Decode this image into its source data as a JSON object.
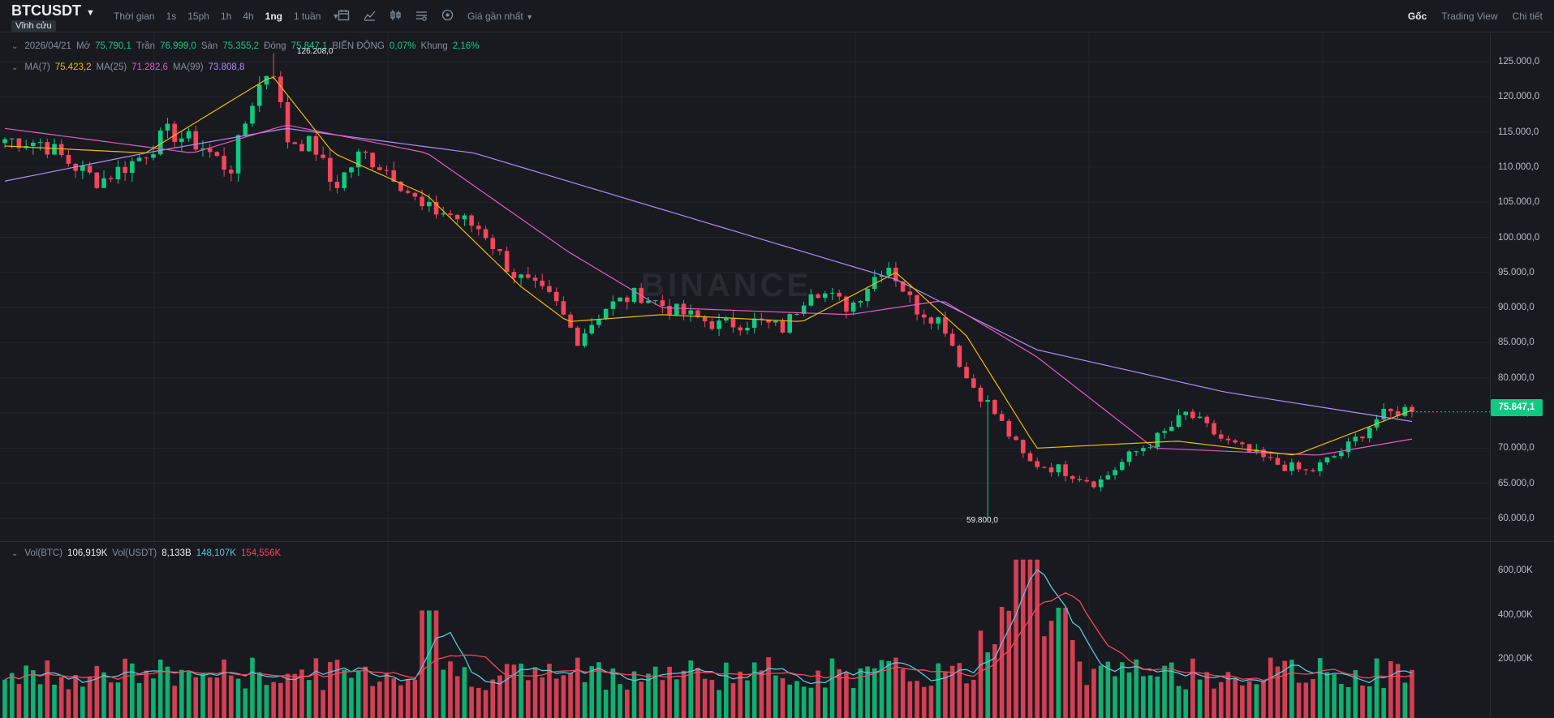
{
  "header": {
    "symbol": "BTCUSDT",
    "badge": "Vĩnh cửu",
    "intervals": [
      {
        "label": "Thời gian"
      },
      {
        "label": "1s"
      },
      {
        "label": "15ph"
      },
      {
        "label": "1h"
      },
      {
        "label": "4h"
      },
      {
        "label": "1ng",
        "active": true
      },
      {
        "label": "1 tuần"
      }
    ],
    "price_type": "Giá gần nhất",
    "views": [
      {
        "label": "Gốc",
        "active": true
      },
      {
        "label": "Trading View"
      },
      {
        "label": "Chi tiết"
      }
    ],
    "icons": [
      "more-intervals-icon",
      "calendar-icon",
      "indicators-icon",
      "chart-type-icon",
      "settings-icon",
      "plus-circle-icon"
    ]
  },
  "ohlc": {
    "date": "2026/04/21",
    "open_label": "Mở",
    "open": "75.790,1",
    "high_label": "Trần",
    "high": "76.999,0",
    "low_label": "Sàn",
    "low": "75.355,2",
    "close_label": "Đóng",
    "close": "75.847,1",
    "change_label": "BIẾN ĐỘNG",
    "change": "0,07%",
    "amp_label": "Khung",
    "amp": "2,16%"
  },
  "ma": {
    "ma7_label": "MA(7)",
    "ma7": "75.423,2",
    "ma25_label": "MA(25)",
    "ma25": "71.282,6",
    "ma99_label": "MA(99)",
    "ma99": "73.808,8"
  },
  "vol": {
    "btc_label": "Vol(BTC)",
    "btc": "106,919K",
    "usdt_label": "Vol(USDT)",
    "usdt": "8,133B",
    "ma1": "148,107K",
    "ma2": "154,556K"
  },
  "price_axis": [
    "125.000,0",
    "120.000,0",
    "115.000,0",
    "110.000,0",
    "105.000,0",
    "100.000,0",
    "95.000,0",
    "90.000,0",
    "85.000,0",
    "80.000,0",
    "75.000,0",
    "70.000,0",
    "65.000,0",
    "60.000,0"
  ],
  "vol_axis": [
    "600,00K",
    "400,00K",
    "200,00K"
  ],
  "last_price": "75.847,1",
  "high_marker": "126.208,0",
  "low_marker": "59.800,0",
  "watermark": "BINANCE",
  "colors": {
    "up": "#0ecb81",
    "down": "#f6465d",
    "ma7": "#f0b90b",
    "ma25": "#e659c2",
    "ma99": "#b28cf5",
    "vol_ma1": "#5bc6d8",
    "vol_ma2": "#f6465d"
  },
  "chart_data": {
    "type": "candlestick",
    "n_candles": 200,
    "price_range": [
      58000,
      127000
    ],
    "close_path": [
      [
        0,
        114000
      ],
      [
        8,
        113500
      ],
      [
        14,
        110500
      ],
      [
        20,
        108000
      ],
      [
        28,
        111000
      ],
      [
        35,
        115000
      ],
      [
        42,
        113000
      ],
      [
        48,
        109500
      ],
      [
        53,
        120000
      ],
      [
        57,
        125000
      ],
      [
        60,
        114000
      ],
      [
        66,
        113000
      ],
      [
        70,
        107000
      ],
      [
        76,
        112000
      ],
      [
        83,
        109000
      ],
      [
        89,
        104000
      ],
      [
        94,
        103500
      ],
      [
        102,
        101000
      ],
      [
        108,
        95000
      ],
      [
        117,
        91000
      ],
      [
        122,
        85500
      ],
      [
        128,
        90000
      ],
      [
        135,
        92000
      ],
      [
        143,
        89500
      ],
      [
        152,
        87500
      ],
      [
        160,
        88000
      ],
      [
        166,
        87000
      ],
      [
        172,
        93000
      ],
      [
        180,
        90000
      ],
      [
        188,
        96500
      ],
      [
        194,
        90000
      ],
      [
        200,
        88000
      ],
      [
        205,
        80000
      ],
      [
        210,
        76000
      ],
      [
        218,
        68000
      ],
      [
        225,
        67000
      ],
      [
        233,
        65000
      ],
      [
        240,
        69000
      ],
      [
        247,
        72000
      ],
      [
        252,
        75000
      ],
      [
        260,
        71000
      ],
      [
        270,
        68000
      ],
      [
        278,
        66500
      ],
      [
        286,
        70000
      ],
      [
        293,
        74500
      ],
      [
        300,
        75800
      ]
    ],
    "ma7_path": [
      [
        0,
        113000
      ],
      [
        30,
        112000
      ],
      [
        57,
        123000
      ],
      [
        70,
        112000
      ],
      [
        90,
        106000
      ],
      [
        110,
        93000
      ],
      [
        120,
        88000
      ],
      [
        140,
        89000
      ],
      [
        170,
        88000
      ],
      [
        190,
        95000
      ],
      [
        205,
        86000
      ],
      [
        220,
        70000
      ],
      [
        250,
        71000
      ],
      [
        275,
        69000
      ],
      [
        300,
        75400
      ]
    ],
    "ma25_path": [
      [
        0,
        115500
      ],
      [
        40,
        112000
      ],
      [
        60,
        116000
      ],
      [
        90,
        112000
      ],
      [
        120,
        98000
      ],
      [
        140,
        90000
      ],
      [
        180,
        89000
      ],
      [
        200,
        91000
      ],
      [
        220,
        83000
      ],
      [
        245,
        70000
      ],
      [
        280,
        69000
      ],
      [
        300,
        71300
      ]
    ],
    "ma99_path": [
      [
        0,
        108000
      ],
      [
        30,
        112000
      ],
      [
        60,
        115500
      ],
      [
        100,
        112000
      ],
      [
        150,
        102000
      ],
      [
        190,
        94000
      ],
      [
        220,
        84000
      ],
      [
        260,
        78000
      ],
      [
        300,
        73800
      ]
    ],
    "high": 126208.0,
    "low": 59800.0,
    "volume_range": [
      0,
      700000
    ],
    "vol_ma": 148107,
    "vol_ma2": 154556
  }
}
